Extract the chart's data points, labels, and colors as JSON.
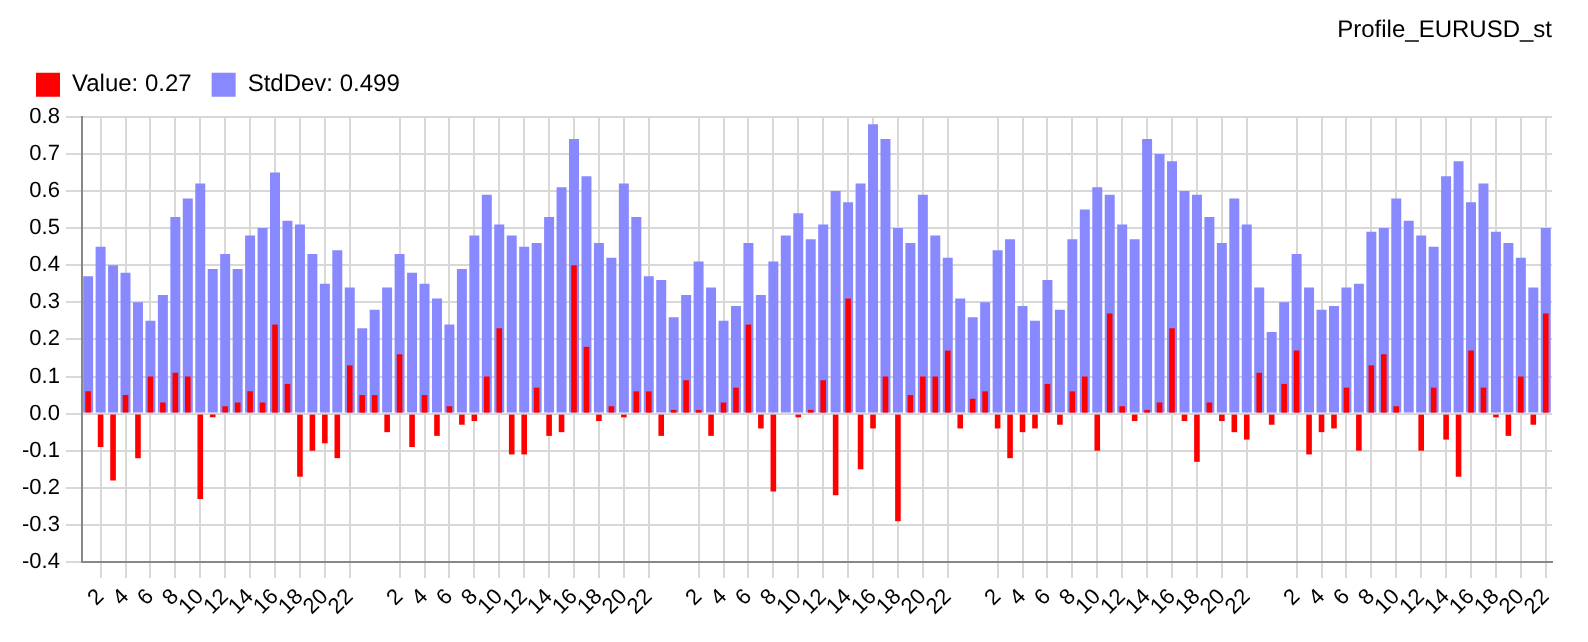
{
  "chart_data": {
    "type": "bar",
    "title": "Profile_EURUSD_st",
    "categories": [
      null,
      "2",
      null,
      "4",
      null,
      "6",
      null,
      "8",
      null,
      "10",
      null,
      "12",
      null,
      "14",
      null,
      "16",
      null,
      "18",
      null,
      "20",
      null,
      "22",
      null,
      null,
      null,
      "2",
      null,
      "4",
      null,
      "6",
      null,
      "8",
      null,
      "10",
      null,
      "12",
      null,
      "14",
      null,
      "16",
      null,
      "18",
      null,
      "20",
      null,
      "22",
      null,
      null,
      null,
      "2",
      null,
      "4",
      null,
      "6",
      null,
      "8",
      null,
      "10",
      null,
      "12",
      null,
      "14",
      null,
      "16",
      null,
      "18",
      null,
      "20",
      null,
      "22",
      null,
      null,
      null,
      "2",
      null,
      "4",
      null,
      "6",
      null,
      "8",
      null,
      "10",
      null,
      "12",
      null,
      "14",
      null,
      "16",
      null,
      "18",
      null,
      "20",
      null,
      "22",
      null,
      null,
      null,
      "2",
      null,
      "4",
      null,
      "6",
      null,
      "8",
      null,
      "10",
      null,
      "12",
      null,
      "14",
      null,
      "16",
      null,
      "18",
      null,
      "20",
      null,
      "22"
    ],
    "series": [
      {
        "name": "Value: 0.27",
        "color": "#ff0000",
        "values": [
          0.06,
          -0.09,
          -0.18,
          0.05,
          -0.12,
          0.1,
          0.03,
          0.11,
          0.1,
          -0.23,
          -0.01,
          0.02,
          0.03,
          0.06,
          0.03,
          0.24,
          0.08,
          -0.17,
          -0.1,
          -0.08,
          -0.12,
          0.13,
          0.05,
          0.05,
          -0.05,
          0.16,
          -0.09,
          0.05,
          -0.06,
          0.02,
          -0.03,
          -0.02,
          0.1,
          0.23,
          -0.11,
          -0.11,
          0.07,
          -0.06,
          -0.05,
          0.4,
          0.18,
          -0.02,
          0.02,
          -0.01,
          0.06,
          0.06,
          -0.06,
          0.01,
          0.09,
          0.01,
          -0.06,
          0.03,
          0.07,
          0.24,
          -0.04,
          -0.21,
          0,
          -0.01,
          0.01,
          0.09,
          -0.22,
          0.31,
          -0.15,
          -0.04,
          0.1,
          -0.29,
          0.05,
          0.1,
          0.1,
          0.17,
          -0.04,
          0.04,
          0.06,
          -0.04,
          -0.12,
          -0.05,
          -0.04,
          0.08,
          -0.03,
          0.06,
          0.1,
          -0.1,
          0.27,
          0.02,
          -0.02,
          0.01,
          0.03,
          0.23,
          -0.02,
          -0.13,
          0.03,
          -0.02,
          -0.05,
          -0.07,
          0.11,
          -0.03,
          0.08,
          0.17,
          -0.11,
          -0.05,
          -0.04,
          0.07,
          -0.1,
          0.13,
          0.16,
          0.02,
          0,
          -0.1,
          0.07,
          -0.07,
          -0.17,
          0.17,
          0.07,
          -0.01,
          -0.06,
          0.1,
          -0.03,
          0.27
        ]
      },
      {
        "name": "StdDev: 0.499",
        "color": "#8888ff",
        "values": [
          0.37,
          0.45,
          0.4,
          0.38,
          0.3,
          0.25,
          0.32,
          0.53,
          0.58,
          0.62,
          0.39,
          0.43,
          0.39,
          0.48,
          0.5,
          0.65,
          0.52,
          0.51,
          0.43,
          0.35,
          0.44,
          0.34,
          0.23,
          0.28,
          0.34,
          0.43,
          0.38,
          0.35,
          0.31,
          0.24,
          0.39,
          0.48,
          0.59,
          0.51,
          0.48,
          0.45,
          0.46,
          0.53,
          0.61,
          0.74,
          0.64,
          0.46,
          0.42,
          0.62,
          0.53,
          0.37,
          0.36,
          0.26,
          0.32,
          0.41,
          0.34,
          0.25,
          0.29,
          0.46,
          0.32,
          0.41,
          0.48,
          0.54,
          0.47,
          0.51,
          0.6,
          0.57,
          0.62,
          0.78,
          0.74,
          0.5,
          0.46,
          0.59,
          0.48,
          0.42,
          0.31,
          0.26,
          0.3,
          0.44,
          0.47,
          0.29,
          0.25,
          0.36,
          0.28,
          0.47,
          0.55,
          0.61,
          0.59,
          0.51,
          0.47,
          0.74,
          0.7,
          0.68,
          0.6,
          0.59,
          0.53,
          0.46,
          0.58,
          0.51,
          0.34,
          0.22,
          0.3,
          0.43,
          0.34,
          0.28,
          0.29,
          0.34,
          0.35,
          0.49,
          0.5,
          0.58,
          0.52,
          0.48,
          0.45,
          0.64,
          0.68,
          0.57,
          0.62,
          0.49,
          0.46,
          0.42,
          0.34,
          0.5
        ]
      }
    ],
    "ylim": [
      -0.4,
      0.8
    ],
    "yticks": [
      -0.4,
      -0.3,
      -0.2,
      -0.1,
      {
        "value": 0,
        "label": "0.0"
      },
      0.1,
      0.2,
      0.3,
      0.4,
      0.5,
      0.6,
      0.7,
      0.8
    ],
    "grid": true,
    "legend": "top left"
  }
}
